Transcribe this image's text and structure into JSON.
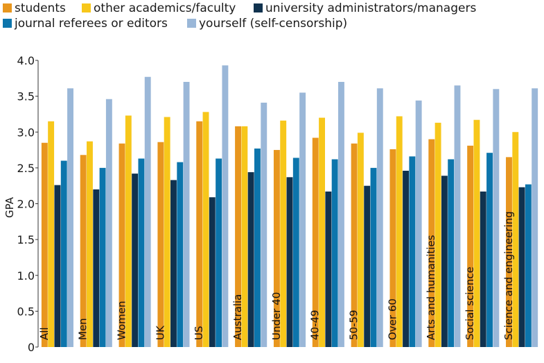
{
  "chart_data": {
    "type": "bar",
    "title": "",
    "xlabel": "",
    "ylabel": "GPA",
    "ylim": [
      0,
      4.0
    ],
    "yticks": [
      "0",
      "0.5",
      "1.0",
      "1.5",
      "2.0",
      "2.5",
      "3.0",
      "3.5",
      "4.0"
    ],
    "grid": false,
    "legend_position": "top",
    "categories": [
      "All",
      "Men",
      "Women",
      "UK",
      "US",
      "Australia",
      "Under 40",
      "40-49",
      "50-59",
      "Over 60",
      "Arts and humanities",
      "Social science",
      "Science and engineering"
    ],
    "series": [
      {
        "name": "students",
        "color": "#e8961e",
        "values": [
          2.85,
          2.68,
          2.84,
          2.86,
          3.15,
          3.08,
          2.75,
          2.92,
          2.84,
          2.76,
          2.9,
          2.81,
          2.65
        ]
      },
      {
        "name": "other academics/faculty",
        "color": "#f7c71b",
        "values": [
          3.15,
          2.87,
          3.23,
          3.21,
          3.28,
          3.08,
          3.16,
          3.2,
          2.99,
          3.22,
          3.13,
          3.17,
          3.0
        ]
      },
      {
        "name": "university administrators/managers",
        "color": "#10324f",
        "values": [
          2.26,
          2.2,
          2.42,
          2.33,
          2.09,
          2.44,
          2.37,
          2.17,
          2.25,
          2.46,
          2.39,
          2.17,
          2.23
        ]
      },
      {
        "name": "journal referees or editors",
        "color": "#0c75ac",
        "values": [
          2.6,
          2.5,
          2.63,
          2.58,
          2.63,
          2.77,
          2.64,
          2.62,
          2.5,
          2.66,
          2.62,
          2.71,
          2.27
        ]
      },
      {
        "name": "yourself (self-censorship)",
        "color": "#9ab7d8",
        "values": [
          3.61,
          3.46,
          3.77,
          3.7,
          3.93,
          3.41,
          3.55,
          3.7,
          3.61,
          3.44,
          3.65,
          3.6,
          3.61
        ]
      }
    ]
  }
}
